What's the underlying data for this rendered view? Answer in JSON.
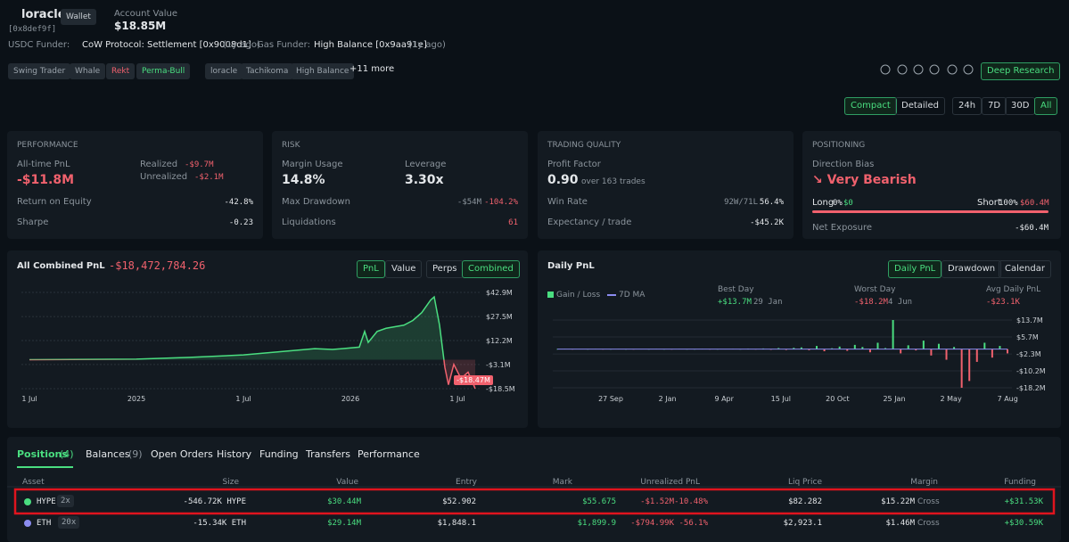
{
  "header": {
    "name": "loracle",
    "badge": "Wallet",
    "address": "[0x8def9f]",
    "account_value_label": "Account Value",
    "account_value": "$18.85M",
    "usdc_funder_label": "USDC Funder:",
    "usdc_funder": "CoW Protocol: Settlement [0x9008d1]",
    "usdc_funder_age": "(1y ago)",
    "gas_funder_label": "Gas Funder:",
    "gas_funder": "High Balance [0x9aa91e]",
    "gas_funder_age": "(1y ago)",
    "tags": [
      "Swing Trader",
      "Whale",
      "Rekt",
      "Perma-Bull",
      "loracle",
      "Tachikoma",
      "High Balance"
    ],
    "more_tags": "+11 more",
    "deep_research": "Deep Research"
  },
  "view_modes": [
    "Compact",
    "Detailed"
  ],
  "ranges": [
    "24h",
    "7D",
    "30D",
    "All"
  ],
  "cards": {
    "performance": {
      "title": "PERFORMANCE",
      "pnl_label": "All-time PnL",
      "pnl": "-$11.8M",
      "realized_label": "Realized",
      "realized": "-$9.7M",
      "unrealized_label": "Unrealized",
      "unrealized": "-$2.1M",
      "roe_label": "Return on Equity",
      "roe": "-42.8%",
      "sharpe_label": "Sharpe",
      "sharpe": "-0.23"
    },
    "risk": {
      "title": "RISK",
      "margin_label": "Margin Usage",
      "margin": "14.8%",
      "leverage_label": "Leverage",
      "leverage": "3.30x",
      "drawdown_label": "Max Drawdown",
      "drawdown": "-$54M",
      "drawdown_pct": "-104.2%",
      "liq_label": "Liquidations",
      "liq": "61"
    },
    "quality": {
      "title": "TRADING QUALITY",
      "pf_label": "Profit Factor",
      "pf": "0.90",
      "pf_note": "over 163 trades",
      "win_label": "Win Rate",
      "win_record": "92W/71L",
      "win_pct": "56.4%",
      "exp_label": "Expectancy / trade",
      "exp": "-$45.2K"
    },
    "positioning": {
      "title": "POSITIONING",
      "bias_label": "Direction Bias",
      "bias": "↘ Very Bearish",
      "long_label": "Long",
      "long_pct": "0%",
      "long_value": "$0",
      "short_label": "Short",
      "short_pct": "100%",
      "short_value": "$60.4M",
      "net_label": "Net Exposure",
      "net": "-$60.4M"
    }
  },
  "pnl_chart": {
    "title": "All Combined PnL",
    "value": "-$18,472,784.26",
    "toggles": [
      "PnL",
      "Value",
      "Perps",
      "Combined"
    ],
    "x": [
      0,
      6,
      9,
      12,
      13,
      15,
      16,
      17,
      18.5,
      18.8,
      19,
      19.5,
      20,
      21,
      21.5,
      22,
      22.5,
      22.7,
      23,
      23.3,
      23.5,
      23.8,
      24.2,
      24.6,
      25
    ],
    "values": [
      0,
      0.3,
      1.5,
      3,
      4,
      6,
      7,
      6.5,
      8,
      18,
      11,
      18,
      20,
      22,
      25,
      30,
      38,
      40,
      22,
      -5,
      -16,
      -3,
      -12,
      -8,
      -18.47
    ],
    "xticks": [
      {
        "value": 0,
        "label": "1 Jul"
      },
      {
        "value": 6,
        "label": "2025"
      },
      {
        "value": 12,
        "label": "1 Jul"
      },
      {
        "value": 18,
        "label": "2026"
      },
      {
        "value": 24,
        "label": "1 Jul"
      }
    ],
    "ylim": [
      -18.5,
      42.9
    ],
    "yticks": [
      {
        "value": 42.9,
        "label": "$42.9M"
      },
      {
        "value": 27.5,
        "label": "$27.5M"
      },
      {
        "value": 12.2,
        "label": "$12.2M"
      },
      {
        "value": -3.1,
        "label": "-$3.1M"
      },
      {
        "value": -18.5,
        "label": "-$18.5M"
      }
    ],
    "last_value_label": "-$18.47M"
  },
  "daily_chart": {
    "title": "Daily PnL",
    "toggles": [
      "Daily PnL",
      "Drawdown",
      "Calendar"
    ],
    "legend": [
      "Gain / Loss",
      "7D MA"
    ],
    "best_label": "Best Day",
    "best": "+$13.7M",
    "best_date": "29 Jan",
    "worst_label": "Worst Day",
    "worst": "-$18.2M",
    "worst_date": "4 Jun",
    "avg_label": "Avg Daily PnL",
    "avg": "-$23.1K",
    "values": [
      0,
      0.1,
      -0.1,
      0.05,
      0,
      0.1,
      -0.05,
      0,
      0.1,
      0,
      -0.1,
      0.05,
      0,
      0.1,
      0,
      -0.05,
      0.1,
      0,
      0,
      0.1,
      -0.1,
      0,
      0.05,
      0.1,
      0,
      0.2,
      -0.2,
      0.3,
      -0.3,
      0.5,
      -0.4,
      0.6,
      0.8,
      -0.5,
      1.5,
      -1,
      0.4,
      1.2,
      -0.8,
      2,
      1,
      -1.5,
      3,
      0.5,
      13.7,
      -2,
      1.8,
      -0.6,
      4,
      -3,
      2.5,
      -5,
      1,
      -18.2,
      -15,
      -6,
      3,
      -4,
      1.5,
      -2
    ],
    "categories": [
      "27 Sep",
      "2 Jan",
      "9 Apr",
      "15 Jul",
      "20 Oct",
      "25 Jan",
      "2 May",
      "7 Aug"
    ],
    "ylim": [
      -18.2,
      13.7
    ],
    "yticks": [
      {
        "value": 13.7,
        "label": "$13.7M"
      },
      {
        "value": 5.7,
        "label": "$5.7M"
      },
      {
        "value": -2.3,
        "label": "-$2.3M"
      },
      {
        "value": -10.2,
        "label": "-$10.2M"
      },
      {
        "value": -18.2,
        "label": "-$18.2M"
      }
    ]
  },
  "tabs": [
    {
      "label": "Positions",
      "count": "(4)"
    },
    {
      "label": "Balances",
      "count": "(9)"
    },
    {
      "label": "Open Orders"
    },
    {
      "label": "History"
    },
    {
      "label": "Funding"
    },
    {
      "label": "Transfers"
    },
    {
      "label": "Performance"
    }
  ],
  "table": {
    "columns": [
      "Asset",
      "Size",
      "Value",
      "Entry",
      "Mark",
      "Unrealized PnL",
      "Liq Price",
      "Margin",
      "Funding"
    ],
    "rows": [
      [
        "HYPE",
        "2x",
        "-546.72K HYPE",
        "$30.44M",
        "$52.902",
        "$55.675",
        "-$1.52M",
        "-10.48%",
        "$82.282",
        "$15.22M",
        "Cross",
        "+$31.53K"
      ],
      [
        "ETH",
        "20x",
        "-15.34K ETH",
        "$29.14M",
        "$1,848.1",
        "$1,899.9",
        "-$794.99K",
        "-56.1%",
        "$2,923.1",
        "$1.46M",
        "Cross",
        "+$30.59K"
      ]
    ]
  }
}
